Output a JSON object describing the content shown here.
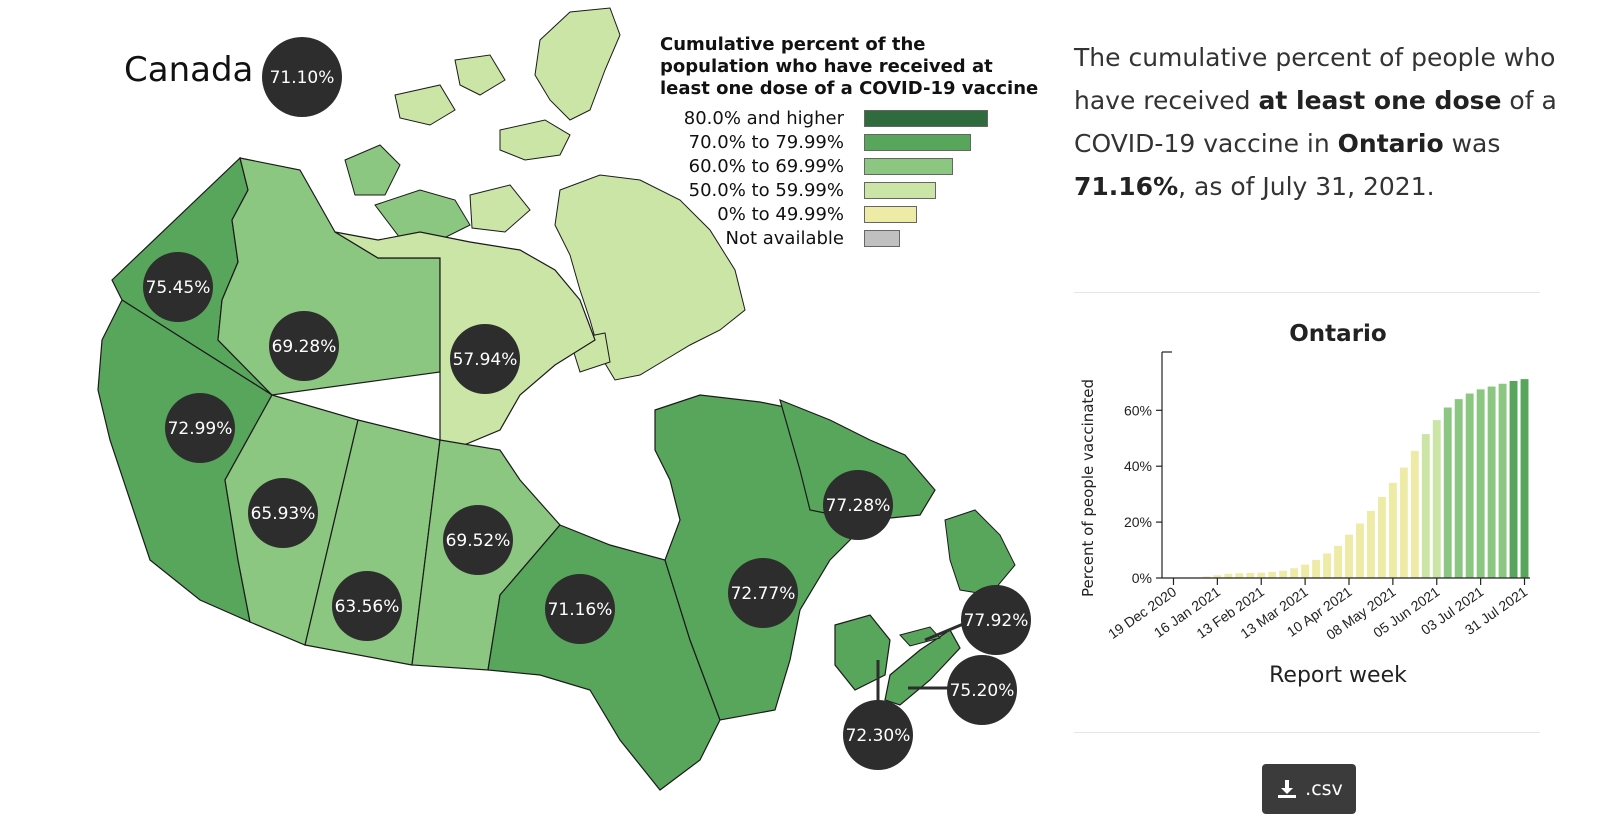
{
  "map": {
    "title": "Canada",
    "national_value": "71.10%",
    "provinces": [
      {
        "id": "yt",
        "label": "75.45%",
        "value": 75.45
      },
      {
        "id": "nt",
        "label": "69.28%",
        "value": 69.28
      },
      {
        "id": "nu",
        "label": "57.94%",
        "value": 57.94
      },
      {
        "id": "bc",
        "label": "72.99%",
        "value": 72.99
      },
      {
        "id": "ab",
        "label": "65.93%",
        "value": 65.93
      },
      {
        "id": "sk",
        "label": "63.56%",
        "value": 63.56
      },
      {
        "id": "mb",
        "label": "69.52%",
        "value": 69.52
      },
      {
        "id": "on",
        "label": "71.16%",
        "value": 71.16
      },
      {
        "id": "qc",
        "label": "72.77%",
        "value": 72.77
      },
      {
        "id": "nl",
        "label": "77.28%",
        "value": 77.28
      },
      {
        "id": "pe",
        "label": "77.92%",
        "value": 77.92
      },
      {
        "id": "ns",
        "label": "75.20%",
        "value": 75.2
      },
      {
        "id": "nb",
        "label": "72.30%",
        "value": 72.3
      }
    ]
  },
  "legend": {
    "title": "Cumulative percent of the population who have received at least one dose of a COVID-19 vaccine",
    "items": [
      {
        "label": "80.0% and higher",
        "color": "#2f6b3c",
        "size": 1.0
      },
      {
        "label": "70.0% to 79.99%",
        "color": "#58a55c",
        "size": 0.86
      },
      {
        "label": "60.0% to 69.99%",
        "color": "#8bc780",
        "size": 0.72
      },
      {
        "label": "50.0% to 59.99%",
        "color": "#cbe5a6",
        "size": 0.58
      },
      {
        "label": "0% to 49.99%",
        "color": "#eeeba6",
        "size": 0.43
      },
      {
        "label": "Not available",
        "color": "#c0c0c0",
        "size": 0.29
      }
    ]
  },
  "summary": {
    "p1": "The cumulative percent of people who have received ",
    "b1": "at least one dose",
    "p2": " of a COVID-19 vaccine in ",
    "b2": "Ontario",
    "p3": " was ",
    "b3": "71.16%",
    "p4": ", as of July 31, 2021."
  },
  "chart_data": {
    "type": "bar",
    "title": "Ontario",
    "xlabel": "Report week",
    "ylabel": "Percent of people vaccinated",
    "ylim": [
      0,
      78
    ],
    "yticks": [
      0,
      20,
      40,
      60
    ],
    "ytick_labels": [
      "0%",
      "20%",
      "40%",
      "60%"
    ],
    "x_tick_labels": [
      "19 Dec 2020",
      "16 Jan 2021",
      "13 Feb 2021",
      "13 Mar 2021",
      "10 Apr 2021",
      "08 May 2021",
      "05 Jun 2021",
      "03 Jul 2021",
      "31 Jul 2021"
    ],
    "x_tick_index": [
      0,
      4,
      8,
      12,
      16,
      20,
      24,
      28,
      32
    ],
    "categories": [
      "19 Dec 2020",
      "26 Dec 2020",
      "02 Jan 2021",
      "09 Jan 2021",
      "16 Jan 2021",
      "23 Jan 2021",
      "30 Jan 2021",
      "06 Feb 2021",
      "13 Feb 2021",
      "20 Feb 2021",
      "27 Feb 2021",
      "06 Mar 2021",
      "13 Mar 2021",
      "20 Mar 2021",
      "27 Mar 2021",
      "03 Apr 2021",
      "10 Apr 2021",
      "17 Apr 2021",
      "24 Apr 2021",
      "01 May 2021",
      "08 May 2021",
      "15 May 2021",
      "22 May 2021",
      "29 May 2021",
      "05 Jun 2021",
      "12 Jun 2021",
      "19 Jun 2021",
      "26 Jun 2021",
      "03 Jul 2021",
      "10 Jul 2021",
      "17 Jul 2021",
      "24 Jul 2021",
      "31 Jul 2021"
    ],
    "values": [
      0.05,
      0.1,
      0.2,
      0.5,
      1.0,
      1.5,
      1.7,
      1.8,
      1.9,
      2.2,
      2.6,
      3.5,
      4.8,
      6.5,
      8.8,
      11.5,
      15.5,
      19.5,
      24.0,
      29.0,
      34.0,
      39.5,
      45.5,
      51.5,
      56.5,
      61.0,
      64.0,
      66.0,
      67.5,
      68.5,
      69.5,
      70.5,
      71.16
    ],
    "color_bands": [
      {
        "min": 80,
        "color": "#2f6b3c"
      },
      {
        "min": 70,
        "color": "#58a55c"
      },
      {
        "min": 60,
        "color": "#8bc780"
      },
      {
        "min": 50,
        "color": "#cbe5a6"
      },
      {
        "min": 0,
        "color": "#eeeba6"
      }
    ]
  },
  "download": {
    "label": ".csv"
  }
}
